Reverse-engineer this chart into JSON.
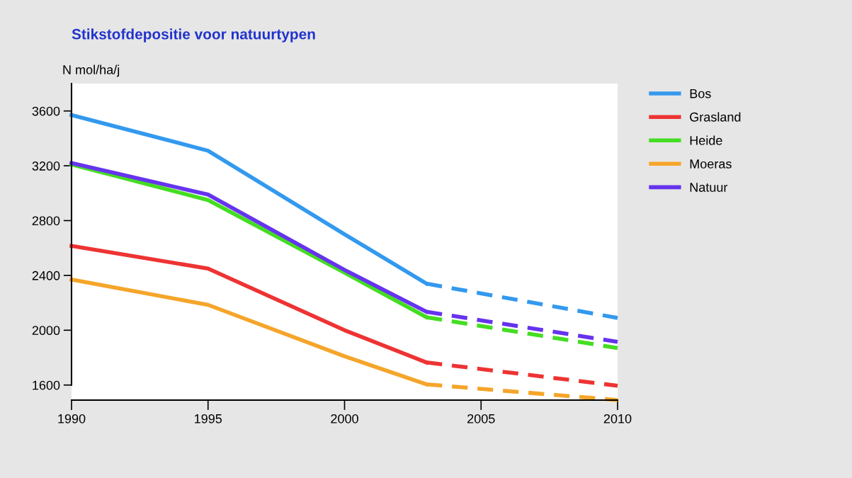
{
  "chart_data": {
    "type": "line",
    "title": "Stikstofdepositie voor natuurtypen",
    "ylabel": "N mol/ha/j",
    "xlim": [
      1990,
      2010
    ],
    "xticks": [
      1990,
      1995,
      2000,
      2005,
      2010
    ],
    "ylim": [
      1490,
      3800
    ],
    "yticks": [
      1600,
      2000,
      2400,
      2800,
      3200,
      3600
    ],
    "grid": false,
    "legend": "right",
    "marker": "none",
    "series": [
      {
        "name": "Bos",
        "color": "#3399ee",
        "line_style": "solid",
        "x": [
          1990,
          1995,
          2000,
          2003
        ],
        "values": [
          3570,
          3310,
          2700,
          2340
        ]
      },
      {
        "color": "#3399ee",
        "line_style": "dashed",
        "x": [
          2003,
          2010
        ],
        "values": [
          2340,
          2090
        ]
      },
      {
        "name": "Grasland",
        "color": "#ee3333",
        "line_style": "solid",
        "x": [
          1990,
          1995,
          2000,
          2003
        ],
        "values": [
          2615,
          2450,
          2000,
          1765
        ]
      },
      {
        "color": "#ee3333",
        "line_style": "dashed",
        "x": [
          2003,
          2010
        ],
        "values": [
          1765,
          1595
        ]
      },
      {
        "name": "Heide",
        "color": "#44dd22",
        "line_style": "solid",
        "x": [
          1990,
          1995,
          2000,
          2003
        ],
        "values": [
          3210,
          2950,
          2420,
          2095
        ]
      },
      {
        "color": "#44dd22",
        "line_style": "dashed",
        "x": [
          2003,
          2010
        ],
        "values": [
          2095,
          1870
        ]
      },
      {
        "name": "Moeras",
        "color": "#f5a52a",
        "line_style": "solid",
        "x": [
          1990,
          1995,
          2000,
          2003
        ],
        "values": [
          2370,
          2185,
          1810,
          1605
        ]
      },
      {
        "color": "#f5a52a",
        "line_style": "dashed",
        "x": [
          2003,
          2010
        ],
        "values": [
          1605,
          1490
        ]
      },
      {
        "name": "Natuur",
        "color": "#6633ee",
        "line_style": "solid",
        "x": [
          1990,
          1995,
          2000,
          2003
        ],
        "values": [
          3220,
          2990,
          2440,
          2135
        ]
      },
      {
        "color": "#6633ee",
        "line_style": "dashed",
        "x": [
          2003,
          2010
        ],
        "values": [
          2135,
          1915
        ]
      }
    ]
  }
}
